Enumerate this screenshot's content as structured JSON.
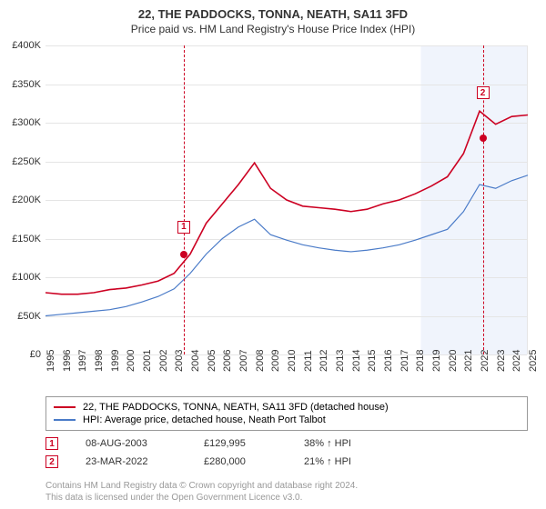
{
  "title": "22, THE PADDOCKS, TONNA, NEATH, SA11 3FD",
  "subtitle": "Price paid vs. HM Land Registry's House Price Index (HPI)",
  "chart": {
    "type": "line",
    "ylim": [
      0,
      400000
    ],
    "ytick_step": 50000,
    "yticks": [
      "£0",
      "£50K",
      "£100K",
      "£150K",
      "£200K",
      "£250K",
      "£300K",
      "£350K",
      "£400K"
    ],
    "xticks": [
      "1995",
      "1996",
      "1997",
      "1998",
      "1999",
      "2000",
      "2001",
      "2002",
      "2003",
      "2004",
      "2005",
      "2006",
      "2007",
      "2008",
      "2009",
      "2010",
      "2011",
      "2012",
      "2013",
      "2014",
      "2015",
      "2016",
      "2017",
      "2018",
      "2019",
      "2020",
      "2021",
      "2022",
      "2023",
      "2024",
      "2025"
    ],
    "background_color": "#ffffff",
    "future_band_color": "#f0f4fc",
    "grid_color": "#e5e5e5",
    "series": [
      {
        "name": "property",
        "label": "22, THE PADDOCKS, TONNA, NEATH, SA11 3FD (detached house)",
        "color": "#cc0022",
        "width": 1.6,
        "data": [
          80000,
          78000,
          78000,
          80000,
          84000,
          86000,
          90000,
          95000,
          105000,
          130000,
          170000,
          195000,
          220000,
          248000,
          215000,
          200000,
          192000,
          190000,
          188000,
          185000,
          188000,
          195000,
          200000,
          208000,
          218000,
          230000,
          260000,
          315000,
          298000,
          308000,
          310000
        ]
      },
      {
        "name": "hpi",
        "label": "HPI: Average price, detached house, Neath Port Talbot",
        "color": "#4a7bc8",
        "width": 1.2,
        "data": [
          50000,
          52000,
          54000,
          56000,
          58000,
          62000,
          68000,
          75000,
          85000,
          105000,
          130000,
          150000,
          165000,
          175000,
          155000,
          148000,
          142000,
          138000,
          135000,
          133000,
          135000,
          138000,
          142000,
          148000,
          155000,
          162000,
          185000,
          220000,
          215000,
          225000,
          232000
        ]
      }
    ],
    "markers": [
      {
        "id": "1",
        "xindex": 8.6,
        "y": 129995,
        "box_y_offset": -30,
        "color": "#cc0022",
        "dot_color": "#cc0022"
      },
      {
        "id": "2",
        "xindex": 27.2,
        "y": 280000,
        "box_y_offset": -50,
        "color": "#cc0022",
        "dot_color": "#cc0022"
      }
    ]
  },
  "marker_table": [
    {
      "id": "1",
      "date": "08-AUG-2003",
      "price": "£129,995",
      "pct": "38% ↑ HPI",
      "color": "#cc0022"
    },
    {
      "id": "2",
      "date": "23-MAR-2022",
      "price": "£280,000",
      "pct": "21% ↑ HPI",
      "color": "#cc0022"
    }
  ],
  "footer": {
    "line1": "Contains HM Land Registry data © Crown copyright and database right 2024.",
    "line2": "This data is licensed under the Open Government Licence v3.0."
  }
}
